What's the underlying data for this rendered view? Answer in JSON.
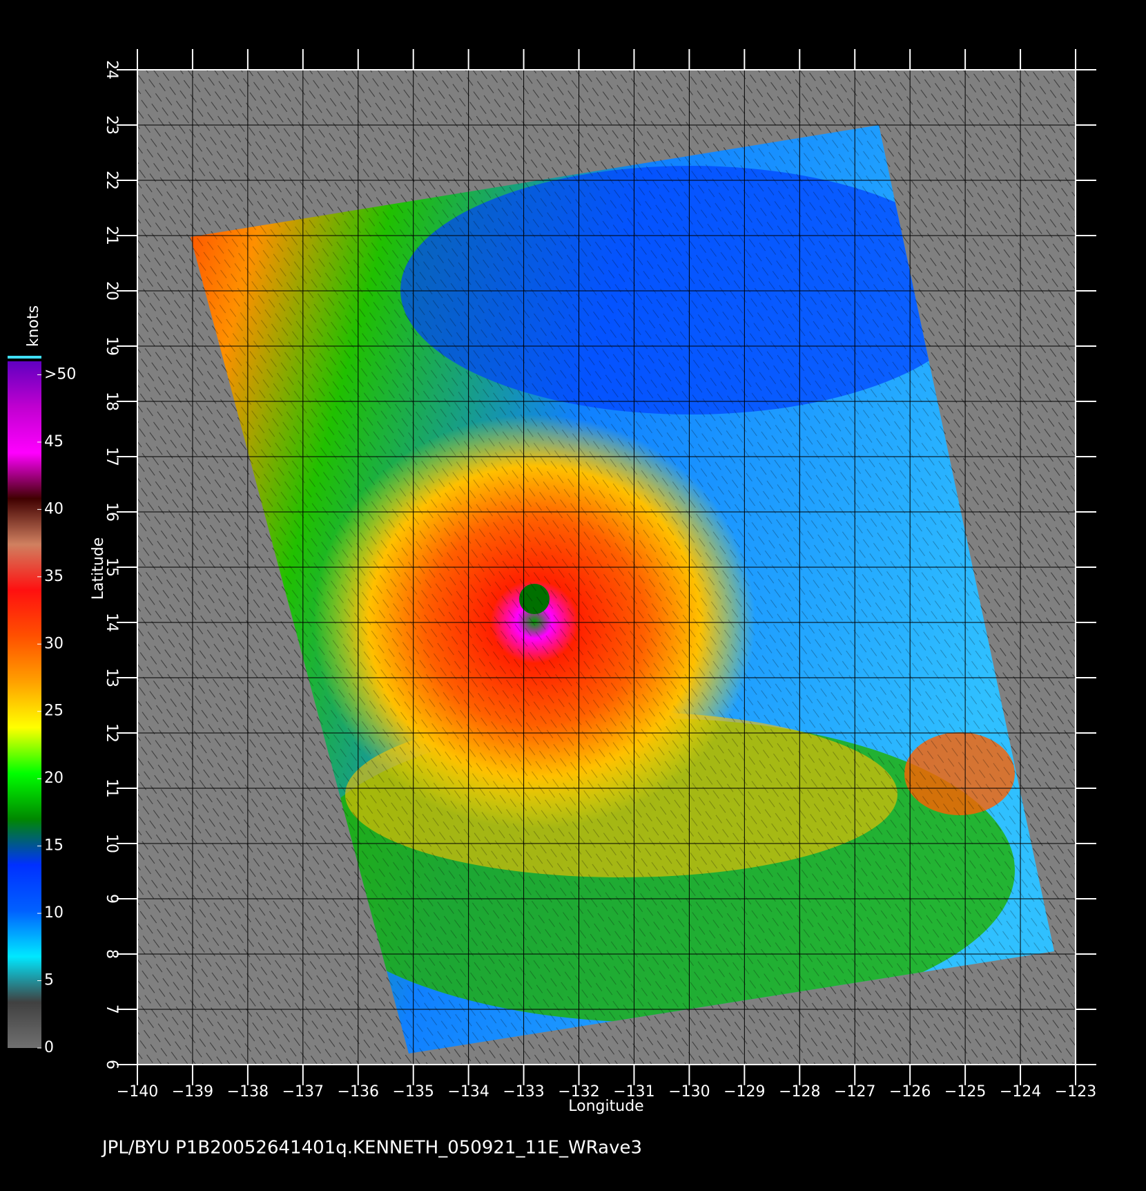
{
  "chart_data": {
    "type": "wind-map",
    "footer": "JPL/BYU  P1B20052641401q.KENNETH_050921_11E_WRave3",
    "xlabel": "Longitude",
    "ylabel": "Latitude",
    "xlim": [
      -140,
      -123
    ],
    "ylim": [
      6,
      24
    ],
    "xticks": [
      {
        "value": -140,
        "label": "−140"
      },
      {
        "value": -139,
        "label": "−139"
      },
      {
        "value": -138,
        "label": "−138"
      },
      {
        "value": -137,
        "label": "−137"
      },
      {
        "value": -136,
        "label": "−136"
      },
      {
        "value": -135,
        "label": "−135"
      },
      {
        "value": -134,
        "label": "−134"
      },
      {
        "value": -133,
        "label": "−133"
      },
      {
        "value": -132,
        "label": "−132"
      },
      {
        "value": -131,
        "label": "−131"
      },
      {
        "value": -130,
        "label": "−130"
      },
      {
        "value": -129,
        "label": "−129"
      },
      {
        "value": -128,
        "label": "−128"
      },
      {
        "value": -127,
        "label": "−127"
      },
      {
        "value": -126,
        "label": "−126"
      },
      {
        "value": -125,
        "label": "−125"
      },
      {
        "value": -124,
        "label": "−124"
      },
      {
        "value": -123,
        "label": "−123"
      }
    ],
    "yticks": [
      6,
      7,
      8,
      9,
      10,
      11,
      12,
      13,
      14,
      15,
      16,
      17,
      18,
      19,
      20,
      21,
      22,
      23,
      24
    ],
    "grid": true,
    "colorbar": {
      "label": "knots",
      "lim": [
        0,
        51
      ],
      "ticks": [
        0,
        5,
        10,
        15,
        20,
        25,
        30,
        35,
        40,
        45,
        {
          "value": 50,
          "label": ">50"
        }
      ],
      "colors": [
        "#707070",
        "#404040",
        "#00e8ff",
        "#0060ff",
        "#0030ff",
        "#008800",
        "#00ff00",
        "#ffff00",
        "#ffa000",
        "#ff5000",
        "#ff1010",
        "#d08060",
        "#400000",
        "#ff00ff",
        "#c000d0",
        "#6000c0"
      ]
    }
  }
}
